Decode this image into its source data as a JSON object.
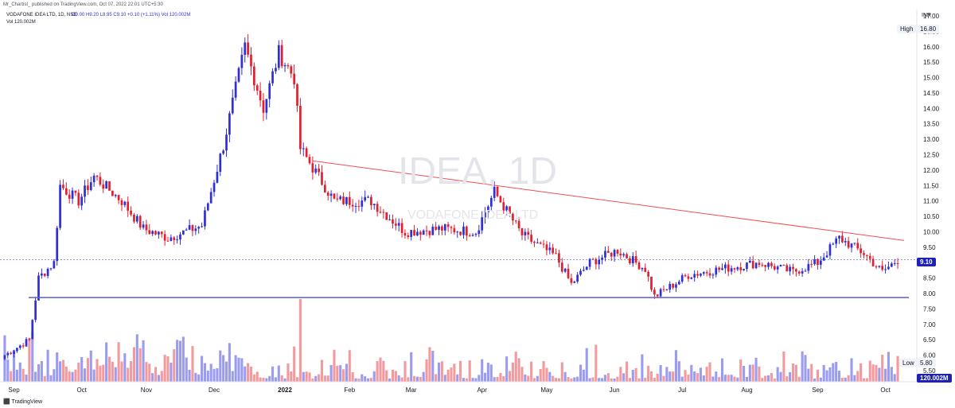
{
  "header": {
    "publisher": "Mr_Chartist_ published on TradingView.com, Oct 07, 2022 22:01 UTC+5:30",
    "symbol": "VODAFONE IDEA LTD, 1D, NSE",
    "ohlc": "O9.00  H9.20  L8.95  C9.10  +0.10 (+1.11%)  Vol 120.002M",
    "vol_line": "Vol  120.002M"
  },
  "watermark": {
    "symbol": "IDEA, 1D",
    "name": "VODAFONE IDEA LTD"
  },
  "footer": {
    "brand": "TradingView"
  },
  "colors": {
    "up": "#2f2fd6",
    "down": "#e0202f",
    "vol_up": "#9b9cf0",
    "vol_down": "#f29a9e",
    "trendline": "#ef4f52",
    "support": "#5c5fc4",
    "price_tag": "#1d22b4"
  },
  "chart_data": {
    "type": "candlestick",
    "currency": "INR",
    "yticks": [
      "17.00",
      "16.50",
      "16.00",
      "15.50",
      "15.00",
      "14.50",
      "14.00",
      "13.50",
      "13.00",
      "12.50",
      "12.00",
      "11.50",
      "11.00",
      "10.50",
      "10.00",
      "9.50",
      "9.00",
      "8.50",
      "8.00",
      "7.50",
      "7.00",
      "6.50",
      "6.00",
      "5.50"
    ],
    "xticks": [
      "Sep",
      "Oct",
      "Nov",
      "Dec",
      "2022",
      "Feb",
      "Mar",
      "Apr",
      "May",
      "Jun",
      "Jul",
      "Aug",
      "Sep",
      "Oct"
    ],
    "ylim": [
      5.4,
      17.1
    ],
    "high_label": "High",
    "high_value": "16.80",
    "low_label": "Low",
    "low_value": "5.80",
    "last_price": "9.10",
    "volume_label": "120.002M",
    "support_level": 7.87,
    "trendline": {
      "from": [
        "2022-01-14",
        12.3
      ],
      "to": [
        "2022-10-07",
        9.72
      ]
    },
    "price_anchors": [
      [
        "2021-08-27",
        6.0
      ],
      [
        "2021-09-08",
        6.5
      ],
      [
        "2021-09-13",
        8.5
      ],
      [
        "2021-09-20",
        9.0
      ],
      [
        "2021-09-22",
        11.5
      ],
      [
        "2021-09-30",
        11.0
      ],
      [
        "2021-10-07",
        11.8
      ],
      [
        "2021-10-20",
        11.0
      ],
      [
        "2021-10-29",
        10.1
      ],
      [
        "2021-11-10",
        9.8
      ],
      [
        "2021-11-25",
        10.2
      ],
      [
        "2021-12-06",
        12.8
      ],
      [
        "2021-12-15",
        16.0
      ],
      [
        "2021-12-23",
        14.0
      ],
      [
        "2021-12-30",
        15.8
      ],
      [
        "2022-01-06",
        15.0
      ],
      [
        "2022-01-10",
        12.7
      ],
      [
        "2022-01-25",
        11.0
      ],
      [
        "2022-02-10",
        11.0
      ],
      [
        "2022-02-25",
        10.0
      ],
      [
        "2022-03-15",
        10.1
      ],
      [
        "2022-03-30",
        10.0
      ],
      [
        "2022-04-07",
        11.3
      ],
      [
        "2022-04-20",
        9.9
      ],
      [
        "2022-05-05",
        9.2
      ],
      [
        "2022-05-12",
        8.3
      ],
      [
        "2022-05-20",
        9.0
      ],
      [
        "2022-06-02",
        9.4
      ],
      [
        "2022-06-15",
        8.8
      ],
      [
        "2022-06-20",
        7.9
      ],
      [
        "2022-07-05",
        8.6
      ],
      [
        "2022-07-20",
        8.8
      ],
      [
        "2022-08-05",
        9.0
      ],
      [
        "2022-08-20",
        8.7
      ],
      [
        "2022-09-01",
        9.0
      ],
      [
        "2022-09-12",
        9.8
      ],
      [
        "2022-09-22",
        9.3
      ],
      [
        "2022-09-30",
        8.7
      ],
      [
        "2022-10-07",
        9.1
      ]
    ],
    "volume_spike": [
      "2022-01-10",
      8.0
    ]
  }
}
